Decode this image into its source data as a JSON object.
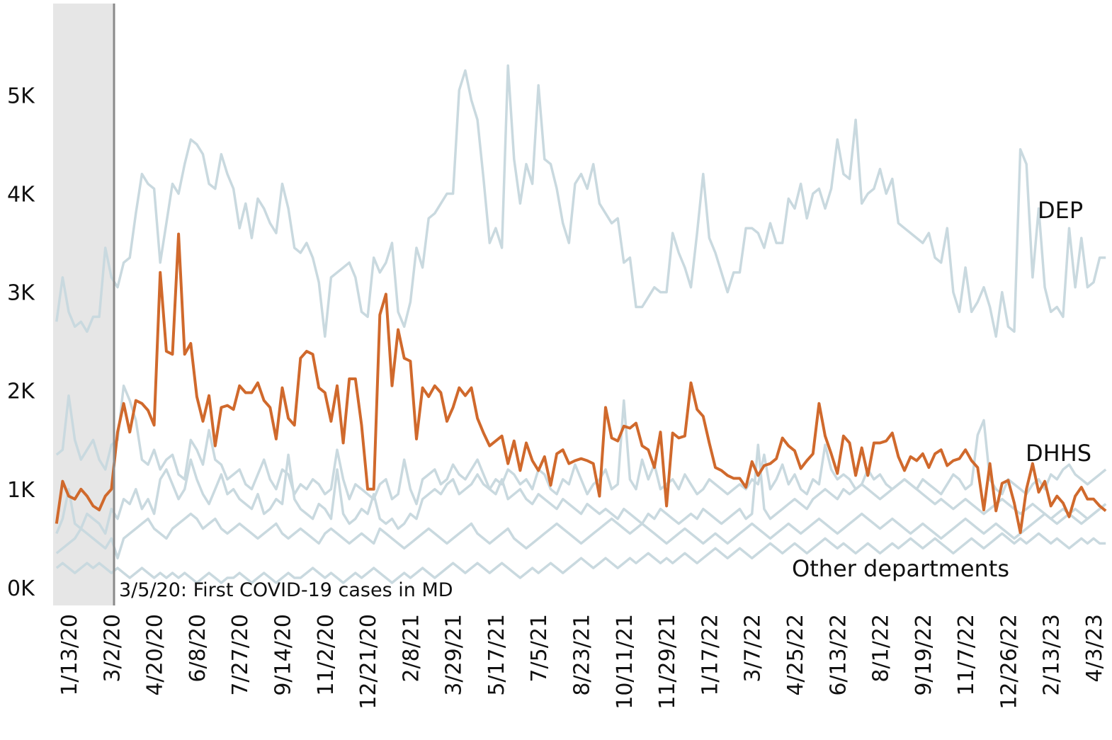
{
  "chart_data": {
    "type": "line",
    "annotations": [
      "3/5/20: First COVID-19 cases in MD",
      "Other departments"
    ],
    "categories": [
      null,
      null,
      "1/13/20",
      null,
      null,
      null,
      null,
      null,
      null,
      "3/2/20",
      null,
      null,
      null,
      null,
      null,
      null,
      "4/20/20",
      null,
      null,
      null,
      null,
      null,
      null,
      "6/8/20",
      null,
      null,
      null,
      null,
      null,
      null,
      "7/27/20",
      null,
      null,
      null,
      null,
      null,
      null,
      "9/14/20",
      null,
      null,
      null,
      null,
      null,
      null,
      "11/2/20",
      null,
      null,
      null,
      null,
      null,
      null,
      "12/21/20",
      null,
      null,
      null,
      null,
      null,
      null,
      "2/8/21",
      null,
      null,
      null,
      null,
      null,
      null,
      "3/29/21",
      null,
      null,
      null,
      null,
      null,
      null,
      "5/17/21",
      null,
      null,
      null,
      null,
      null,
      null,
      "7/5/21",
      null,
      null,
      null,
      null,
      null,
      null,
      "8/23/21",
      null,
      null,
      null,
      null,
      null,
      null,
      "10/11/21",
      null,
      null,
      null,
      null,
      null,
      null,
      "11/29/21",
      null,
      null,
      null,
      null,
      null,
      null,
      "1/17/22",
      null,
      null,
      null,
      null,
      null,
      null,
      "3/7/22",
      null,
      null,
      null,
      null,
      null,
      null,
      "4/25/22",
      null,
      null,
      null,
      null,
      null,
      null,
      "6/13/22",
      null,
      null,
      null,
      null,
      null,
      null,
      "8/1/22",
      null,
      null,
      null,
      null,
      null,
      null,
      "9/19/22",
      null,
      null,
      null,
      null,
      null,
      null,
      "11/7/22",
      null,
      null,
      null,
      null,
      null,
      null,
      "12/26/22",
      null,
      null,
      null,
      null,
      null,
      null,
      "2/13/23",
      null,
      null,
      null,
      null,
      null,
      null,
      "4/3/23",
      null,
      null
    ],
    "series": [
      {
        "color": "#c9d9df",
        "values": [
          1350,
          1400,
          1950,
          1500,
          1300,
          1400,
          1500,
          1300,
          1200,
          1450,
          1500,
          2050,
          1900,
          1700,
          1300,
          1250,
          1400,
          1200,
          1300,
          1350,
          1150,
          1100,
          1500,
          1400,
          1250,
          1600,
          1300,
          1250,
          1100,
          1150,
          1200,
          1050,
          1000,
          1150,
          1300,
          1100,
          1000,
          1200,
          1150,
          950,
          1050,
          1000,
          1100,
          1050,
          950,
          1000,
          1400,
          1100,
          900,
          1050,
          1000,
          950,
          900,
          1050,
          1100,
          900,
          950,
          1300,
          1000,
          850,
          1100,
          1150,
          1200,
          1050,
          1100,
          1250,
          1150,
          1100,
          1200,
          1300,
          1150,
          1000,
          1100,
          1050,
          1200,
          1150,
          1050,
          1100,
          1000,
          1200,
          1150,
          1000,
          950,
          1100,
          1050,
          1250,
          1100,
          950,
          1050,
          1100,
          1200,
          1000,
          1050,
          1900,
          1100,
          1000,
          1300,
          1100,
          1250,
          1000,
          1050,
          1100,
          1000,
          1150,
          1050,
          950,
          1000,
          1100,
          1050,
          1000,
          950,
          1000,
          1050,
          1000,
          1100,
          1050,
          1350,
          1000,
          1100,
          1250,
          1050,
          1150,
          1000,
          950,
          1100,
          1050,
          1450,
          1200,
          1100,
          1150,
          1100,
          1000,
          1050,
          1200,
          1100,
          1150,
          1050,
          1000,
          1050,
          1100,
          1050,
          1000,
          1100,
          1050,
          1000,
          950,
          1050,
          1150,
          1100,
          1000,
          1050,
          1550,
          1700,
          1100,
          1000,
          950,
          1100,
          1050,
          1000,
          950,
          1050,
          1100,
          1000,
          1150,
          1100,
          1200,
          1250,
          1150,
          1100,
          1050,
          1100,
          1150,
          1200
        ]
      },
      {
        "color": "#c9d9df",
        "values": [
          550,
          700,
          1000,
          650,
          600,
          750,
          700,
          650,
          550,
          800,
          700,
          900,
          850,
          1000,
          800,
          900,
          750,
          1100,
          1200,
          1050,
          900,
          1000,
          1300,
          1100,
          950,
          850,
          1000,
          1150,
          950,
          1000,
          900,
          850,
          800,
          950,
          750,
          800,
          900,
          850,
          1350,
          900,
          800,
          750,
          700,
          850,
          800,
          700,
          1200,
          750,
          650,
          700,
          800,
          750,
          950,
          700,
          650,
          700,
          600,
          650,
          750,
          700,
          900,
          950,
          1000,
          950,
          1050,
          1100,
          950,
          1000,
          1050,
          1150,
          1050,
          1000,
          950,
          1100,
          900,
          950,
          1000,
          900,
          850,
          950,
          900,
          850,
          800,
          900,
          850,
          800,
          750,
          850,
          800,
          750,
          800,
          750,
          700,
          800,
          750,
          700,
          650,
          750,
          700,
          800,
          750,
          700,
          650,
          700,
          750,
          700,
          800,
          750,
          700,
          650,
          700,
          750,
          800,
          700,
          750,
          1450,
          800,
          700,
          750,
          800,
          850,
          900,
          850,
          800,
          900,
          950,
          1000,
          950,
          900,
          1000,
          950,
          1000,
          1050,
          1000,
          950,
          900,
          950,
          1000,
          1050,
          1100,
          1050,
          1000,
          950,
          900,
          850,
          900,
          850,
          800,
          850,
          900,
          850,
          800,
          750,
          800,
          850,
          900,
          850,
          800,
          750,
          800,
          850,
          800,
          750,
          700,
          750,
          800,
          750,
          700,
          650,
          700,
          750,
          800,
          850
        ]
      },
      {
        "color": "#c9d9df",
        "values": [
          350,
          400,
          450,
          500,
          600,
          550,
          500,
          450,
          400,
          500,
          300,
          500,
          550,
          600,
          650,
          700,
          600,
          550,
          500,
          600,
          650,
          700,
          750,
          700,
          600,
          650,
          700,
          600,
          550,
          600,
          650,
          600,
          550,
          500,
          550,
          600,
          650,
          550,
          500,
          550,
          600,
          550,
          500,
          450,
          550,
          600,
          550,
          500,
          450,
          500,
          550,
          500,
          450,
          600,
          550,
          500,
          450,
          400,
          450,
          500,
          550,
          600,
          550,
          500,
          450,
          500,
          550,
          600,
          650,
          550,
          500,
          450,
          500,
          550,
          600,
          500,
          450,
          400,
          450,
          500,
          550,
          600,
          650,
          600,
          550,
          500,
          450,
          500,
          550,
          600,
          650,
          700,
          650,
          600,
          550,
          600,
          650,
          600,
          550,
          500,
          450,
          500,
          550,
          600,
          550,
          500,
          450,
          500,
          550,
          500,
          450,
          500,
          550,
          600,
          650,
          600,
          550,
          500,
          550,
          600,
          650,
          600,
          550,
          600,
          650,
          700,
          650,
          600,
          550,
          600,
          650,
          700,
          750,
          700,
          650,
          600,
          650,
          700,
          650,
          600,
          550,
          600,
          650,
          600,
          550,
          500,
          550,
          600,
          650,
          700,
          650,
          600,
          550,
          600,
          650,
          600,
          550,
          500,
          550,
          600,
          650,
          700,
          750,
          700,
          650,
          700,
          750,
          800,
          750,
          700,
          750,
          800,
          850
        ]
      },
      {
        "color": "#c9d9df",
        "values": [
          200,
          250,
          200,
          150,
          200,
          250,
          200,
          250,
          200,
          150,
          200,
          150,
          100,
          150,
          200,
          150,
          100,
          150,
          100,
          150,
          100,
          150,
          100,
          50,
          100,
          150,
          100,
          50,
          100,
          100,
          150,
          100,
          50,
          100,
          150,
          100,
          50,
          100,
          150,
          100,
          100,
          150,
          200,
          150,
          100,
          150,
          100,
          50,
          100,
          150,
          100,
          150,
          200,
          150,
          100,
          50,
          100,
          150,
          100,
          150,
          200,
          150,
          100,
          150,
          200,
          250,
          200,
          150,
          200,
          250,
          200,
          150,
          200,
          250,
          200,
          150,
          100,
          150,
          200,
          150,
          200,
          250,
          200,
          150,
          200,
          250,
          300,
          250,
          200,
          250,
          300,
          250,
          200,
          250,
          300,
          250,
          300,
          350,
          300,
          250,
          300,
          250,
          300,
          350,
          300,
          250,
          300,
          350,
          400,
          350,
          300,
          350,
          400,
          350,
          300,
          350,
          400,
          450,
          400,
          350,
          400,
          450,
          400,
          350,
          400,
          450,
          500,
          450,
          400,
          450,
          400,
          350,
          400,
          450,
          400,
          350,
          400,
          450,
          400,
          450,
          500,
          450,
          400,
          450,
          500,
          450,
          400,
          350,
          400,
          450,
          500,
          450,
          400,
          450,
          500,
          550,
          500,
          450,
          500,
          450,
          500,
          550,
          500,
          450,
          500,
          450,
          400,
          450,
          500,
          450,
          500,
          450,
          450
        ]
      },
      {
        "name": "DEP",
        "color": "#c9d9df",
        "values": [
          2700,
          3150,
          2800,
          2650,
          2700,
          2600,
          2750,
          2750,
          3450,
          3150,
          3050,
          3300,
          3350,
          3800,
          4200,
          4100,
          4050,
          3300,
          3700,
          4100,
          4000,
          4300,
          4550,
          4500,
          4400,
          4100,
          4050,
          4400,
          4200,
          4050,
          3650,
          3900,
          3550,
          3950,
          3850,
          3700,
          3600,
          4100,
          3850,
          3450,
          3400,
          3500,
          3350,
          3100,
          2550,
          3150,
          3200,
          3250,
          3300,
          3150,
          2800,
          2750,
          3350,
          3200,
          3300,
          3500,
          2800,
          2650,
          2900,
          3450,
          3250,
          3750,
          3800,
          3900,
          4000,
          4000,
          5050,
          5250,
          4950,
          4750,
          4150,
          3500,
          3650,
          3450,
          5300,
          4350,
          3900,
          4300,
          4100,
          5100,
          4350,
          4300,
          4050,
          3700,
          3500,
          4100,
          4200,
          4050,
          4300,
          3900,
          3800,
          3700,
          3750,
          3300,
          3350,
          2850,
          2850,
          2950,
          3050,
          3000,
          3000,
          3600,
          3400,
          3250,
          3050,
          3600,
          4200,
          3550,
          3400,
          3200,
          3000,
          3200,
          3200,
          3650,
          3650,
          3600,
          3450,
          3700,
          3500,
          3500,
          3950,
          3850,
          4100,
          3750,
          4000,
          4050,
          3850,
          4050,
          4550,
          4200,
          4150,
          4750,
          3900,
          4000,
          4050,
          4250,
          4000,
          4150,
          3700,
          3650,
          3600,
          3550,
          3500,
          3600,
          3350,
          3300,
          3650,
          3000,
          2800,
          3250,
          2800,
          2900,
          3050,
          2850,
          2550,
          3000,
          2650,
          2600,
          4450,
          4300,
          3150,
          3850,
          3050,
          2800,
          2850,
          2750,
          3650,
          3050,
          3550,
          3050,
          3100,
          3350,
          3350
        ]
      },
      {
        "name": "DHHS",
        "color": "#d0692c",
        "values": [
          650,
          1080,
          930,
          900,
          1000,
          930,
          830,
          790,
          930,
          1000,
          1580,
          1870,
          1580,
          1900,
          1870,
          1800,
          1650,
          3200,
          2400,
          2370,
          3590,
          2370,
          2480,
          1940,
          1690,
          1950,
          1440,
          1830,
          1850,
          1810,
          2050,
          1980,
          1980,
          2080,
          1900,
          1830,
          1510,
          2030,
          1720,
          1650,
          2330,
          2400,
          2370,
          2030,
          1980,
          1690,
          2050,
          1470,
          2120,
          2120,
          1650,
          1000,
          1000,
          2770,
          2980,
          2050,
          2620,
          2330,
          2300,
          1510,
          2030,
          1940,
          2050,
          1980,
          1690,
          1830,
          2030,
          1950,
          2030,
          1720,
          1570,
          1440,
          1490,
          1540,
          1260,
          1490,
          1190,
          1470,
          1290,
          1190,
          1330,
          1040,
          1360,
          1400,
          1260,
          1290,
          1310,
          1290,
          1260,
          930,
          1830,
          1520,
          1490,
          1640,
          1620,
          1670,
          1440,
          1400,
          1220,
          1580,
          830,
          1570,
          1520,
          1540,
          2080,
          1810,
          1740,
          1470,
          1220,
          1190,
          1140,
          1110,
          1110,
          1020,
          1280,
          1140,
          1240,
          1260,
          1310,
          1520,
          1440,
          1390,
          1210,
          1290,
          1360,
          1870,
          1540,
          1360,
          1160,
          1540,
          1470,
          1140,
          1420,
          1140,
          1470,
          1470,
          1490,
          1570,
          1330,
          1190,
          1330,
          1290,
          1360,
          1220,
          1360,
          1400,
          1240,
          1290,
          1310,
          1400,
          1290,
          1220,
          790,
          1260,
          780,
          1060,
          1090,
          860,
          560,
          1000,
          1260,
          970,
          1080,
          830,
          930,
          860,
          720,
          930,
          1020,
          900,
          900,
          830,
          780
        ]
      }
    ],
    "ylim": [
      -180,
      5930
    ],
    "yticks": [
      {
        "value": 0,
        "label": "0K"
      },
      {
        "value": 1000,
        "label": "1K"
      },
      {
        "value": 2000,
        "label": "2K"
      },
      {
        "value": 3000,
        "label": "3K"
      },
      {
        "value": 4000,
        "label": "4K"
      },
      {
        "value": 5000,
        "label": "5K"
      }
    ]
  }
}
